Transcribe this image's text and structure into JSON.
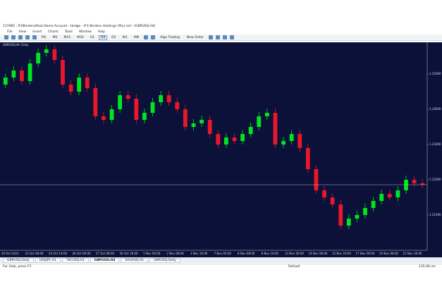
{
  "window": {
    "title": "137985 : IFXBinders/Real Demo Account - Hedge - IFX Binders Holdings (Pty) Ltd - [GBPUSD,H4]"
  },
  "menu": [
    "File",
    "View",
    "Insert",
    "Charts",
    "Tools",
    "Window",
    "Help"
  ],
  "toolbar": {
    "timeframes": [
      "M1",
      "M5",
      "M15",
      "M30",
      "H1",
      "H4",
      "D1",
      "W1",
      "MN"
    ],
    "algo": "Algo Trading",
    "order": "New Order"
  },
  "chart_data": {
    "type": "candlestick",
    "title": "GBPUSD,H4: Daily",
    "ylim": [
      1.2,
      1.2588
    ],
    "yticks": [
      {
        "value": 1.21,
        "label": "1.21000"
      },
      {
        "value": 1.22,
        "label": "1.22000"
      },
      {
        "value": 1.23,
        "label": "1.23000"
      },
      {
        "value": 1.24,
        "label": "1.24000"
      },
      {
        "value": 1.25,
        "label": "1.25000"
      }
    ],
    "bull_color": "#00e61e",
    "bear_color": "#e8172b",
    "x_labels": [
      "20 Oct 2023",
      "23 Oct 08:00",
      "24 Oct 16:00",
      "26 Oct 00:00",
      "27 Oct 08:00",
      "30 Oct 16:00",
      "1 Nov 00:00",
      "2 Nov 08:00",
      "3 Nov 16:00",
      "7 Nov 00:00",
      "8 Nov 08:00",
      "9 Nov 16:00",
      "13 Nov 00:00",
      "14 Nov 08:00",
      "15 Nov 16:00",
      "17 Nov 00:00",
      "20 Nov 08:00",
      "21 Nov 16:00"
    ],
    "open": [
      1.247,
      1.249,
      1.251,
      1.248,
      1.253,
      1.256,
      1.257,
      1.254,
      1.247,
      1.245,
      1.249,
      1.246,
      1.238,
      1.237,
      1.24,
      1.244,
      1.243,
      1.237,
      1.239,
      1.242,
      1.244,
      1.242,
      1.24,
      1.235,
      1.236,
      1.237,
      1.233,
      1.23,
      1.232,
      1.231,
      1.233,
      1.235,
      1.238,
      1.239,
      1.23,
      1.231,
      1.233,
      1.229,
      1.223,
      1.217,
      1.215,
      1.213,
      1.207,
      1.209,
      1.21,
      1.212,
      1.214,
      1.216,
      1.215,
      1.217,
      1.22,
      1.219
    ],
    "high": [
      1.2502,
      1.2522,
      1.2522,
      1.2542,
      1.2572,
      1.2582,
      1.2582,
      1.2552,
      1.2482,
      1.2502,
      1.2502,
      1.2472,
      1.2392,
      1.2412,
      1.2452,
      1.2452,
      1.2442,
      1.2402,
      1.2432,
      1.2452,
      1.2452,
      1.2432,
      1.2412,
      1.2372,
      1.2382,
      1.2382,
      1.2342,
      1.2332,
      1.2332,
      1.2342,
      1.2362,
      1.2392,
      1.2402,
      1.2402,
      1.2322,
      1.2342,
      1.2342,
      1.2302,
      1.2242,
      1.2182,
      1.2162,
      1.2142,
      1.2102,
      1.2112,
      1.2132,
      1.2152,
      1.2172,
      1.2172,
      1.2182,
      1.2212,
      1.2212,
      1.2202
    ],
    "low": [
      1.246,
      1.248,
      1.247,
      1.247,
      1.252,
      1.255,
      1.253,
      1.246,
      1.244,
      1.244,
      1.245,
      1.237,
      1.236,
      1.236,
      1.239,
      1.242,
      1.236,
      1.236,
      1.238,
      1.241,
      1.241,
      1.239,
      1.234,
      1.234,
      1.235,
      1.232,
      1.229,
      1.229,
      1.23,
      1.23,
      1.232,
      1.234,
      1.237,
      1.229,
      1.229,
      1.23,
      1.228,
      1.222,
      1.216,
      1.214,
      1.212,
      1.206,
      1.206,
      1.208,
      1.209,
      1.211,
      1.213,
      1.214,
      1.214,
      1.216,
      1.218,
      1.2176
    ],
    "close": [
      1.249,
      1.251,
      1.248,
      1.253,
      1.256,
      1.257,
      1.254,
      1.247,
      1.245,
      1.249,
      1.246,
      1.238,
      1.237,
      1.24,
      1.244,
      1.243,
      1.237,
      1.239,
      1.242,
      1.244,
      1.242,
      1.24,
      1.235,
      1.236,
      1.237,
      1.233,
      1.23,
      1.232,
      1.231,
      1.233,
      1.235,
      1.238,
      1.239,
      1.23,
      1.231,
      1.233,
      1.229,
      1.223,
      1.217,
      1.215,
      1.213,
      1.207,
      1.209,
      1.21,
      1.212,
      1.214,
      1.216,
      1.215,
      1.217,
      1.22,
      1.219,
      1.2186
    ]
  },
  "tabs": [
    "GBPUSD,Daily",
    "USDJPY,H1",
    "TXCUSD,H1",
    "GBPUSD,H4",
    "XAUUSD,H1",
    "GBPUSD,Daily"
  ],
  "status": {
    "help": "For Help, press F1",
    "profile": "Default",
    "ping": "135.06 ms"
  }
}
